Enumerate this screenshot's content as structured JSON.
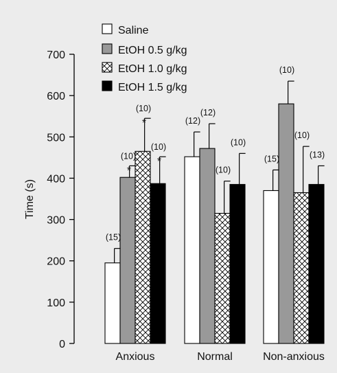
{
  "chart_data": {
    "type": "bar",
    "ylabel": "Time (s)",
    "xlabel": "",
    "ylim": [
      0,
      700
    ],
    "yticks": [
      0,
      100,
      200,
      300,
      400,
      500,
      600,
      700
    ],
    "grid": false,
    "legend_position": "top-left",
    "categories": [
      "Anxious",
      "Normal",
      "Non-anxious"
    ],
    "series": [
      {
        "name": "Saline",
        "fill": "#ffffff",
        "pattern": "none",
        "values": [
          195,
          452,
          370
        ],
        "errors": [
          35,
          60,
          50
        ],
        "n_labels": [
          "(15)",
          "(12)",
          "(15)"
        ],
        "sig": [
          "",
          "",
          ""
        ]
      },
      {
        "name": "EtOH 0.5 g/kg",
        "fill": "#999999",
        "pattern": "none",
        "values": [
          402,
          472,
          580
        ],
        "errors": [
          28,
          60,
          55
        ],
        "n_labels": [
          "(10)",
          "(12)",
          "(10)"
        ],
        "sig": [
          "*",
          "",
          ""
        ]
      },
      {
        "name": "EtOH 1.0 g/kg",
        "fill": "#ffffff",
        "pattern": "crosshatch",
        "values": [
          465,
          315,
          365
        ],
        "errors": [
          80,
          78,
          112
        ],
        "n_labels": [
          "(10)",
          "(10)",
          "(10)"
        ],
        "sig": [
          "*",
          "",
          ""
        ]
      },
      {
        "name": "EtOH 1.5 g/kg",
        "fill": "#000000",
        "pattern": "none",
        "values": [
          387,
          385,
          385
        ],
        "errors": [
          65,
          75,
          45
        ],
        "n_labels": [
          "(10)",
          "(10)",
          "(13)"
        ],
        "sig": [
          "*",
          "",
          ""
        ]
      }
    ]
  }
}
